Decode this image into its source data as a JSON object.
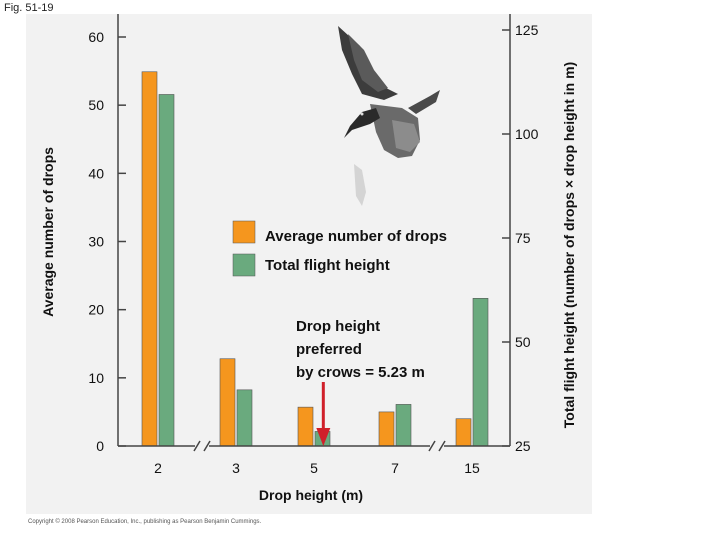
{
  "figure_label": "Fig. 51-19",
  "copyright": "Copyright © 2008 Pearson Education, Inc., publishing as Pearson Benjamin Cummings.",
  "colors": {
    "drops": "#f5961e",
    "flight": "#6aaa7e",
    "arrow": "#d0202a",
    "panel": "#f2f2f2"
  },
  "chart_data": {
    "type": "bar",
    "categories": [
      "2",
      "3",
      "5",
      "7",
      "15"
    ],
    "xlabel": "Drop height (m)",
    "ylabel": "Average number of drops",
    "y2label": "Total flight height (number of drops × drop height in m)",
    "ylim": [
      0,
      60
    ],
    "y2lim": [
      25,
      125
    ],
    "yticks": [
      0,
      10,
      20,
      30,
      40,
      50,
      60
    ],
    "y2ticks": [
      25,
      50,
      75,
      100,
      125
    ],
    "series": [
      {
        "name": "Average number of drops",
        "axis": "left",
        "values": [
          54.9,
          12.8,
          5.7,
          5.0,
          4.0
        ]
      },
      {
        "name": "Total flight height",
        "axis": "right",
        "values": [
          109.5,
          38.5,
          28.5,
          35,
          60.5
        ]
      }
    ],
    "annotation": {
      "lines": [
        "Drop height",
        "preferred",
        "by crows = 5.23 m"
      ],
      "x_value": 5.23
    },
    "legend_position": "center"
  }
}
